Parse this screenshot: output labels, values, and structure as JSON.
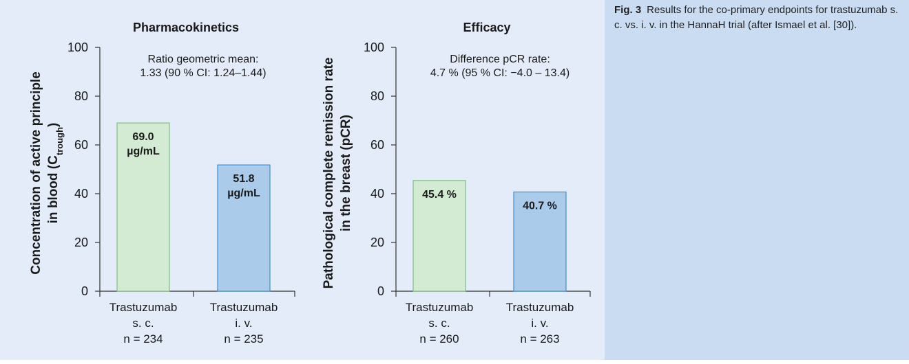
{
  "caption": {
    "label": "Fig. 3",
    "text": "Results for the co-primary endpoints for trastuzumab s. c. vs. i. v. in the HannaH trial (after Ismael et al. [30])."
  },
  "colors": {
    "figure_background": "#e3ecf8",
    "caption_background": "#c9dcf1",
    "sc_fill": "#d3ead3",
    "sc_stroke": "#7fbf7f",
    "iv_fill": "#abcbea",
    "iv_stroke": "#3d8fcf"
  },
  "chart_data": [
    {
      "type": "bar",
      "title": "Pharmacokinetics",
      "ylabel_main": "Concentration of active principle",
      "ylabel_line2_prefix": "in blood (C",
      "ylabel_subscript": "trough",
      "ylabel_line2_suffix": ")",
      "ylim": [
        0,
        100
      ],
      "yticks": [
        "0",
        "20",
        "40",
        "60",
        "80",
        "100"
      ],
      "note": [
        "Ratio geometric mean:",
        "1.33 (90 % CI: 1.24–1.44)"
      ],
      "categories": [
        {
          "lines": [
            "Trastuzumab",
            "s. c.",
            "n = 234"
          ]
        },
        {
          "lines": [
            "Trastuzumab",
            "i. v.",
            "n = 235"
          ]
        }
      ],
      "values": [
        69.0,
        51.8
      ],
      "value_labels": [
        [
          "69.0",
          "µg/mL"
        ],
        [
          "51.8",
          "µg/mL"
        ]
      ]
    },
    {
      "type": "bar",
      "title": "Efficacy",
      "ylabel_main": "Pathological complete remission rate",
      "ylabel_line2_prefix": "in the breast (pCR)",
      "ylabel_subscript": "",
      "ylabel_line2_suffix": "",
      "ylim": [
        0,
        100
      ],
      "yticks": [
        "0",
        "20",
        "40",
        "60",
        "80",
        "100"
      ],
      "note": [
        "Difference pCR rate:",
        "4.7 % (95 % CI: −4.0 – 13.4)"
      ],
      "categories": [
        {
          "lines": [
            "Trastuzumab",
            "s. c.",
            "n = 260"
          ]
        },
        {
          "lines": [
            "Trastuzumab",
            "i. v.",
            "n = 263"
          ]
        }
      ],
      "values": [
        45.4,
        40.7
      ],
      "value_labels": [
        [
          "45.4 %"
        ],
        [
          "40.7 %"
        ]
      ]
    }
  ]
}
